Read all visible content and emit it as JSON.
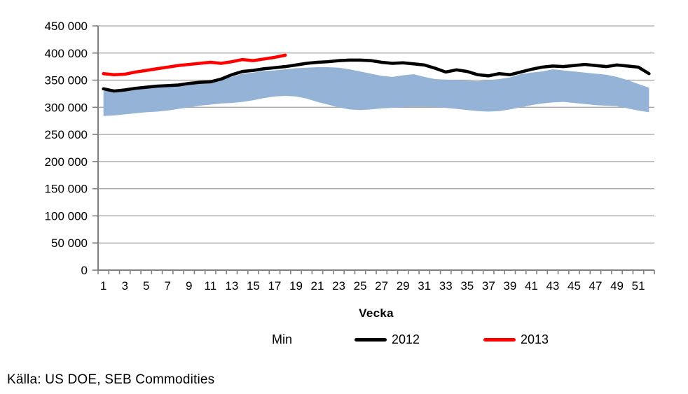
{
  "chart_data": {
    "type": "line",
    "title": "",
    "xlabel": "Vecka",
    "weeks": 52,
    "xtick_labels": [
      "1",
      "3",
      "5",
      "7",
      "9",
      "11",
      "13",
      "15",
      "17",
      "19",
      "21",
      "23",
      "25",
      "27",
      "29",
      "31",
      "33",
      "35",
      "37",
      "39",
      "41",
      "43",
      "45",
      "47",
      "49",
      "51"
    ],
    "ylim": [
      0,
      450000
    ],
    "ytick_step": 50000,
    "ytick_labels": [
      "0",
      "50 000",
      "100 000",
      "150 000",
      "200 000",
      "250 000",
      "300 000",
      "350 000",
      "400 000",
      "450 000"
    ],
    "grid": true,
    "legend_position": "bottom",
    "band": {
      "legend_label": "Min",
      "fill": "#95B3D7",
      "min": [
        284000,
        285000,
        287000,
        289000,
        291000,
        292000,
        294000,
        297000,
        300000,
        303000,
        305000,
        307000,
        308000,
        310000,
        313000,
        317000,
        320000,
        321000,
        320000,
        316000,
        310000,
        305000,
        300000,
        296000,
        295000,
        296000,
        298000,
        299000,
        300000,
        301000,
        301000,
        300000,
        299000,
        297000,
        295000,
        293000,
        292000,
        293000,
        296000,
        300000,
        304000,
        307000,
        309000,
        310000,
        308000,
        306000,
        304000,
        303000,
        302000,
        298000,
        294000,
        291000
      ],
      "max": [
        330000,
        331000,
        333000,
        335000,
        337000,
        339000,
        341000,
        343000,
        346000,
        347000,
        347000,
        350000,
        356000,
        362000,
        364000,
        367000,
        368000,
        370000,
        372000,
        373000,
        374000,
        374000,
        373000,
        370000,
        366000,
        362000,
        358000,
        356000,
        359000,
        361000,
        356000,
        352000,
        351000,
        350000,
        349000,
        348000,
        350000,
        352000,
        355000,
        361000,
        364000,
        366000,
        370000,
        368000,
        366000,
        364000,
        362000,
        360000,
        356000,
        350000,
        343000,
        336000
      ]
    },
    "series": [
      {
        "name": "2012",
        "color": "#000000",
        "start_week": 1,
        "values": [
          334000,
          330000,
          332000,
          335000,
          337000,
          339000,
          340000,
          341000,
          344000,
          346000,
          347000,
          352000,
          360000,
          366000,
          368000,
          371000,
          373000,
          375000,
          378000,
          381000,
          383000,
          384000,
          386000,
          387000,
          387000,
          386000,
          383000,
          381000,
          382000,
          380000,
          378000,
          372000,
          365000,
          369000,
          366000,
          360000,
          358000,
          362000,
          360000,
          365000,
          370000,
          374000,
          376000,
          375000,
          377000,
          379000,
          377000,
          375000,
          378000,
          376000,
          374000,
          362000
        ]
      },
      {
        "name": "2013",
        "color": "#FF0000",
        "start_week": 1,
        "values": [
          362000,
          360000,
          361000,
          365000,
          368000,
          371000,
          374000,
          377000,
          379000,
          381000,
          383000,
          381000,
          384000,
          388000,
          386000,
          389000,
          392000,
          396000
        ]
      }
    ],
    "style": {
      "gridline_color": "#A6A6A6",
      "axis_color": "#7F7F7F",
      "line_width": 4.5
    }
  },
  "legend": {
    "min_label": "Min",
    "y2012_label": "2012",
    "y2013_label": "2013"
  },
  "xaxis_title": "Vecka",
  "source_note": "Källa: US DOE, SEB Commodities"
}
